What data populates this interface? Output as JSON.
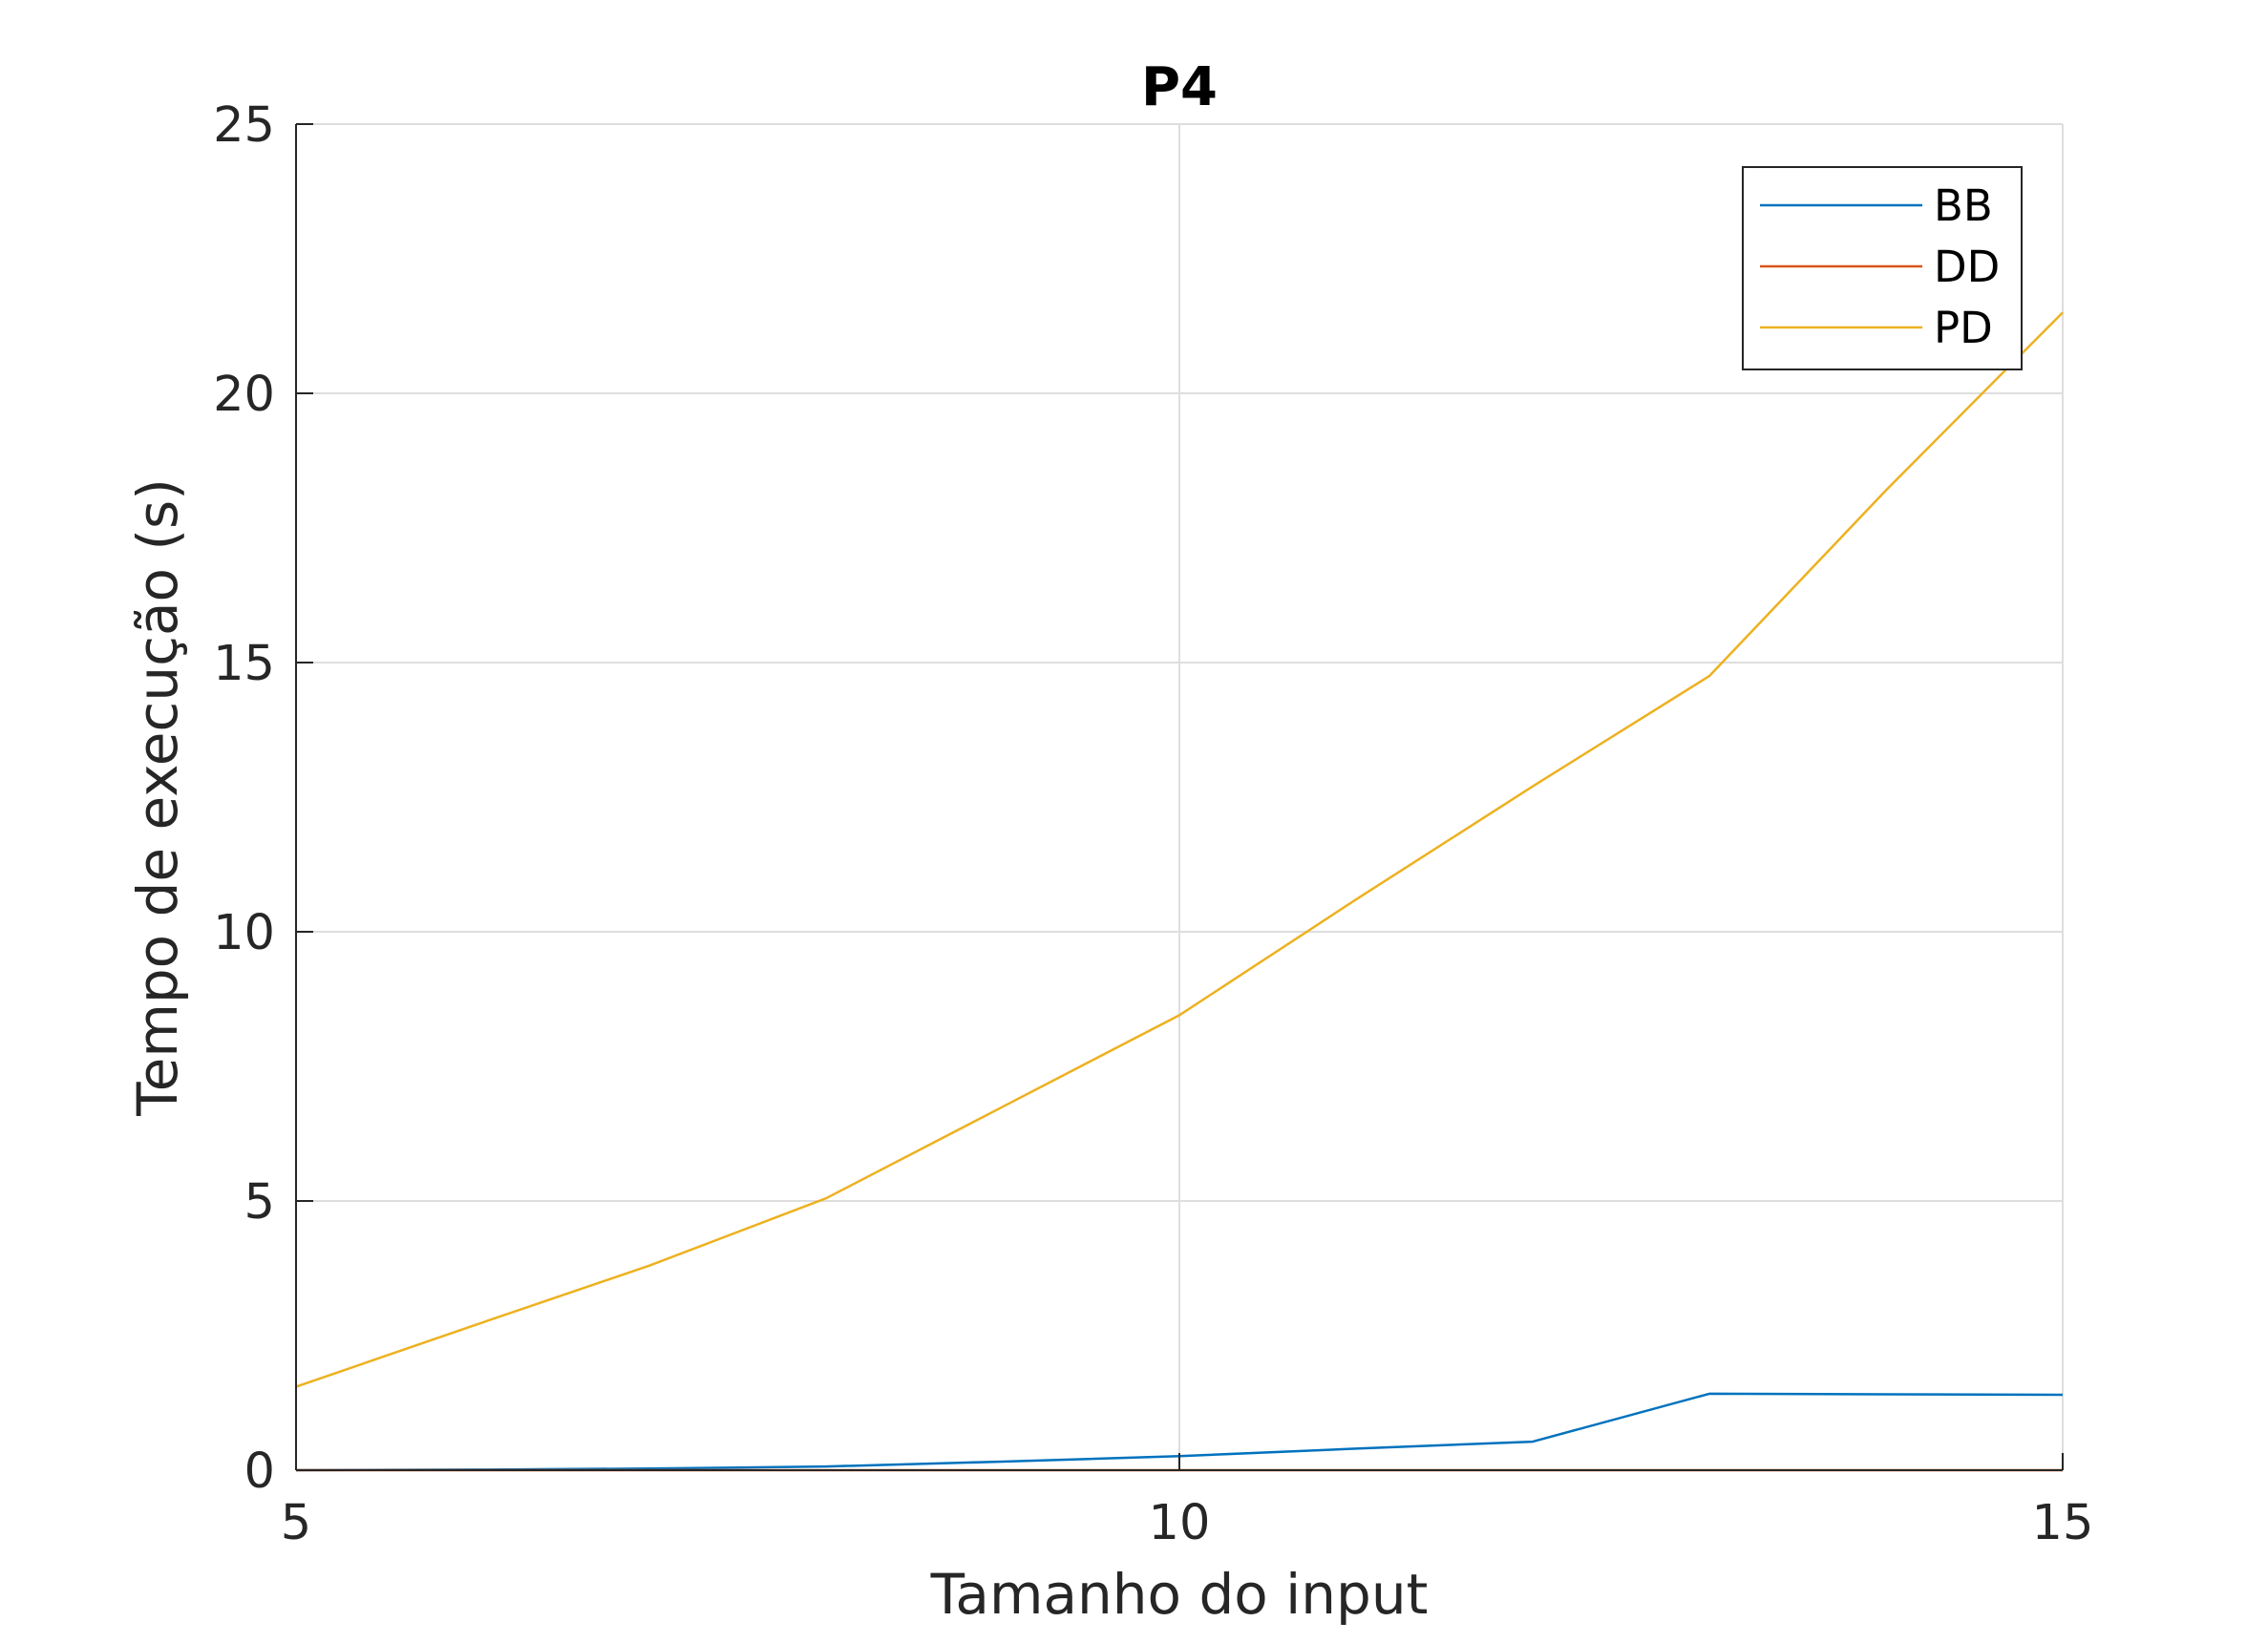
{
  "chart_data": {
    "type": "line",
    "title": "P4",
    "xlabel": "Tamanho do input",
    "ylabel": "Tempo de execução (s)",
    "xlim": [
      5,
      15
    ],
    "ylim": [
      0,
      25
    ],
    "xticks": [
      5,
      10,
      15
    ],
    "yticks": [
      0,
      5,
      10,
      15,
      20,
      25
    ],
    "grid": true,
    "legend_position": "top-right",
    "x": [
      5,
      6,
      7,
      8,
      9,
      10,
      11,
      12,
      13,
      14,
      15
    ],
    "series": [
      {
        "name": "BB",
        "color": "#0072BD",
        "values": [
          0.0,
          0.01,
          0.03,
          0.07,
          0.16,
          0.26,
          0.4,
          0.53,
          1.42,
          1.41,
          1.4
        ]
      },
      {
        "name": "DD",
        "color": "#D95319",
        "values": [
          0,
          0,
          0,
          0,
          0,
          0,
          0,
          0,
          0,
          0,
          0
        ]
      },
      {
        "name": "PD",
        "color": "#EDB120",
        "values": [
          1.55,
          2.68,
          3.8,
          5.05,
          6.75,
          8.45,
          10.6,
          12.7,
          14.75,
          18.2,
          21.5
        ]
      }
    ]
  }
}
